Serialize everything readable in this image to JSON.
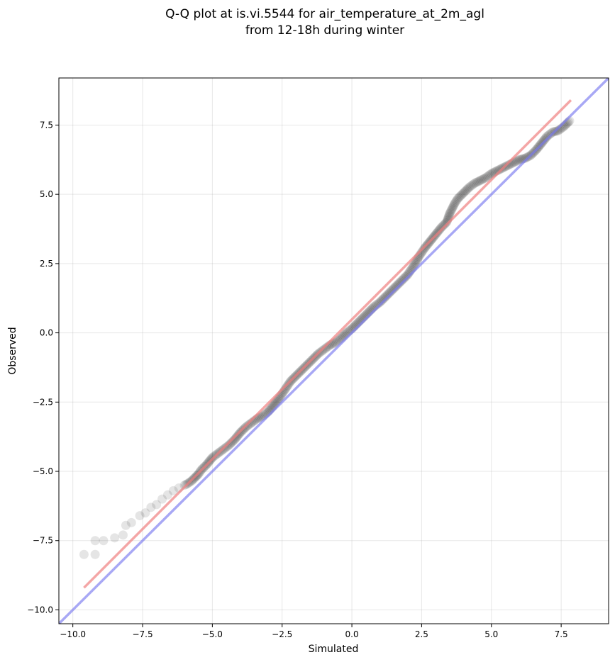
{
  "chart_data": {
    "type": "scatter",
    "title": "Q-Q plot at is.vi.5544 for air_temperature_at_2m_agl",
    "subtitle": "from 12-18h during winter",
    "xlabel": "Simulated",
    "ylabel": "Observed",
    "xlim": [
      -10.5,
      9.2
    ],
    "ylim": [
      -10.5,
      9.2
    ],
    "x_ticks": [
      -10.0,
      -7.5,
      -5.0,
      -2.5,
      0.0,
      2.5,
      5.0,
      7.5
    ],
    "y_ticks": [
      -10.0,
      -7.5,
      -5.0,
      -2.5,
      0.0,
      2.5,
      5.0,
      7.5
    ],
    "x_tick_labels": [
      "−10.0",
      "−7.5",
      "−5.0",
      "−2.5",
      "0.0",
      "2.5",
      "5.0",
      "7.5"
    ],
    "y_tick_labels": [
      "−10.0",
      "−7.5",
      "−5.0",
      "−2.5",
      "0.0",
      "2.5",
      "5.0",
      "7.5"
    ],
    "grid": true,
    "series": [
      {
        "kind": "points",
        "color": "#000000",
        "x": [
          -9.6,
          -9.2,
          -9.2,
          -8.9,
          -8.5,
          -8.2,
          -8.1,
          -7.9,
          -7.6,
          -7.4,
          -7.2,
          -7.0,
          -6.8,
          -6.6,
          -6.4,
          -6.2,
          -6.0,
          -5.9,
          -5.75,
          -5.6,
          -5.5,
          -5.4,
          -5.2,
          -5.0,
          -4.8,
          -4.6,
          -4.4,
          -4.2,
          -4.0,
          -3.8,
          -3.6,
          -3.4,
          -3.2,
          -3.0,
          -2.8,
          -2.6,
          -2.4,
          -2.2,
          -2.0,
          -1.8,
          -1.6,
          -1.4,
          -1.2,
          -1.0,
          -0.8,
          -0.6,
          -0.4,
          -0.2,
          0.0,
          0.2,
          0.4,
          0.6,
          0.8,
          1.0,
          1.2,
          1.4,
          1.6,
          1.8,
          2.0,
          2.2,
          2.4,
          2.6,
          2.8,
          3.0,
          3.2,
          3.4,
          3.5,
          3.6,
          3.7,
          3.8,
          4.0,
          4.2,
          4.4,
          4.6,
          4.8,
          5.0,
          5.2,
          5.4,
          5.6,
          5.8,
          6.0,
          6.2,
          6.4,
          6.6,
          6.8,
          7.0,
          7.2,
          7.4,
          7.6,
          7.8
        ],
        "y": [
          -8.0,
          -8.0,
          -7.5,
          -7.5,
          -7.4,
          -7.3,
          -6.95,
          -6.85,
          -6.6,
          -6.5,
          -6.3,
          -6.2,
          -6.0,
          -5.85,
          -5.7,
          -5.6,
          -5.5,
          -5.45,
          -5.35,
          -5.2,
          -5.1,
          -4.95,
          -4.75,
          -4.5,
          -4.35,
          -4.2,
          -4.05,
          -3.85,
          -3.6,
          -3.4,
          -3.25,
          -3.1,
          -3.0,
          -2.85,
          -2.6,
          -2.35,
          -2.05,
          -1.75,
          -1.55,
          -1.35,
          -1.15,
          -0.95,
          -0.75,
          -0.6,
          -0.45,
          -0.35,
          -0.2,
          0.0,
          0.15,
          0.35,
          0.55,
          0.75,
          0.95,
          1.1,
          1.3,
          1.5,
          1.7,
          1.9,
          2.1,
          2.4,
          2.75,
          3.05,
          3.3,
          3.55,
          3.8,
          4.0,
          4.3,
          4.5,
          4.7,
          4.85,
          5.05,
          5.25,
          5.4,
          5.5,
          5.6,
          5.75,
          5.85,
          5.95,
          6.05,
          6.15,
          6.25,
          6.3,
          6.4,
          6.6,
          6.85,
          7.1,
          7.25,
          7.3,
          7.45,
          7.65
        ]
      },
      {
        "kind": "fit-line",
        "color": "#f08080",
        "x": [
          -9.6,
          7.85
        ],
        "y": [
          -9.2,
          8.4
        ]
      },
      {
        "kind": "identity-line",
        "color": "#7a7af0",
        "x": [
          -10.5,
          9.2
        ],
        "y": [
          -10.5,
          9.2
        ]
      }
    ]
  }
}
